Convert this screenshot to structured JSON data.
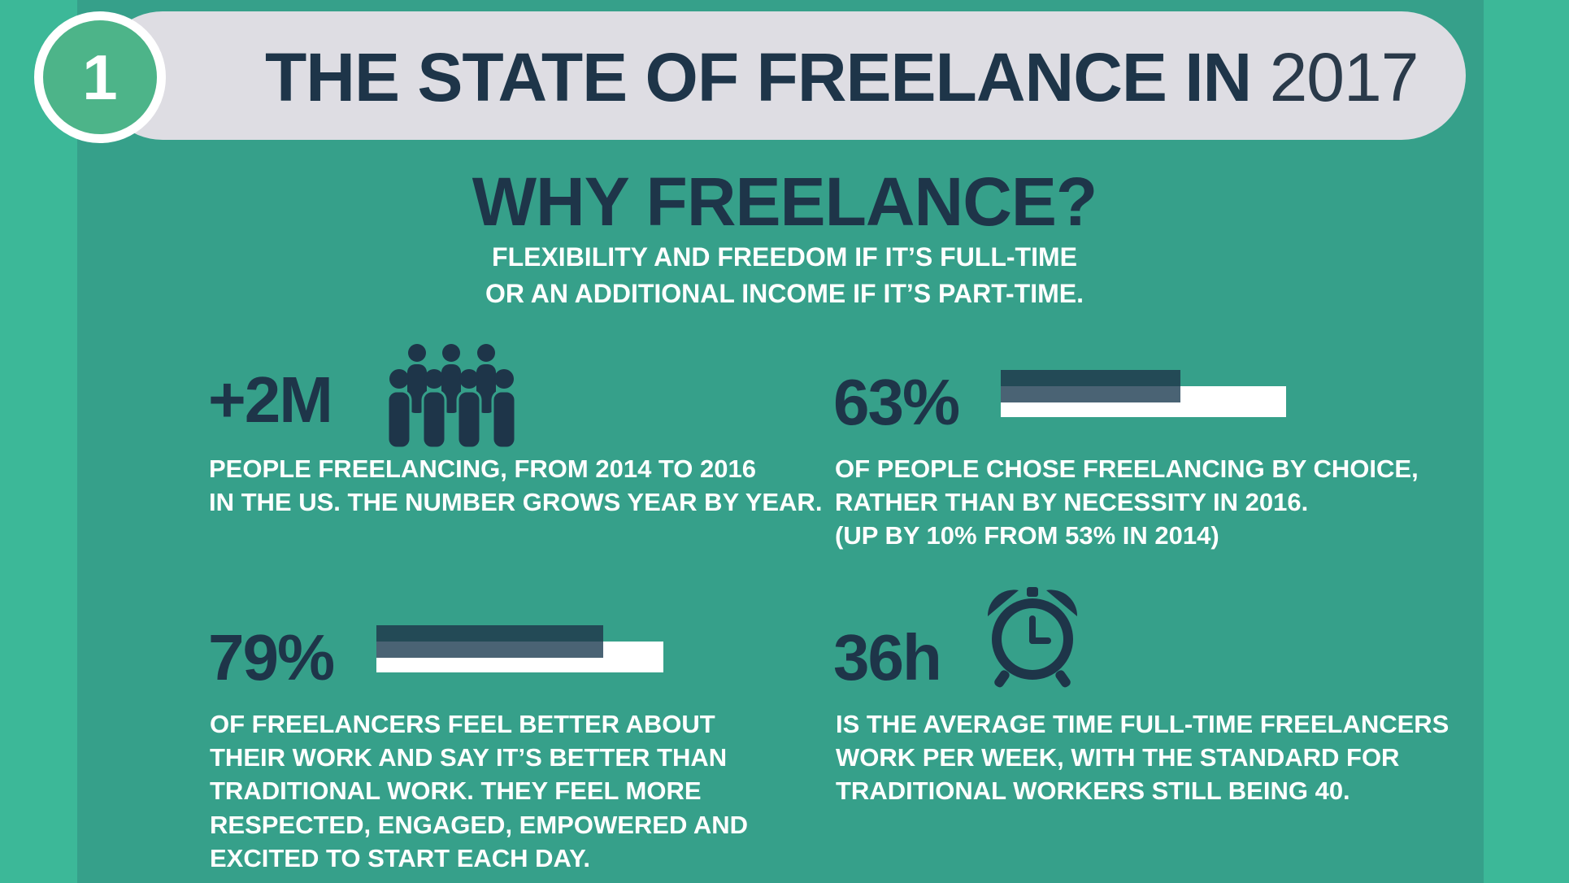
{
  "header": {
    "step_number": "1",
    "title": "THE STATE OF FREELANCE IN",
    "year": "2017"
  },
  "section": {
    "title": "WHY FREELANCE?",
    "subtitle_line1": "FLEXIBILITY AND FREEDOM IF IT’S FULL-TIME",
    "subtitle_line2": "OR AN ADDITIONAL INCOME IF IT’S PART-TIME."
  },
  "stats": {
    "people": {
      "value": "+2M",
      "icon": "people-group-icon",
      "desc_line1": "PEOPLE FREELANCING, FROM 2014 TO 2016",
      "desc_line2": "IN THE US. THE NUMBER GROWS YEAR BY YEAR."
    },
    "choice": {
      "value": "63%",
      "percent": 63,
      "desc_line1": "OF PEOPLE CHOSE FREELANCING BY CHOICE,",
      "desc_line2": "RATHER THAN BY NECESSITY IN 2016.",
      "desc_line3": "(UP BY 10% FROM 53% IN 2014)"
    },
    "better": {
      "value": "79%",
      "percent": 79,
      "desc_line1": "OF FREELANCERS FEEL BETTER ABOUT",
      "desc_line2": "THEIR WORK AND SAY IT’S BETTER THAN",
      "desc_line3": "TRADITIONAL WORK. THEY FEEL MORE",
      "desc_line4": "RESPECTED, ENGAGED, EMPOWERED AND",
      "desc_line5": "EXCITED TO START EACH DAY."
    },
    "hours": {
      "value": "36h",
      "icon": "alarm-clock-icon",
      "desc_line1": "IS THE AVERAGE TIME FULL-TIME FREELANCERS",
      "desc_line2": "WORK PER WEEK, WITH THE STANDARD FOR",
      "desc_line3": "TRADITIONAL WORKERS STILL BEING 40."
    }
  },
  "colors": {
    "background": "#3cb898",
    "panel": "#36a08a",
    "title_bar": "#dedde3",
    "navy": "#1e3549",
    "circle_fill": "#4db489"
  }
}
